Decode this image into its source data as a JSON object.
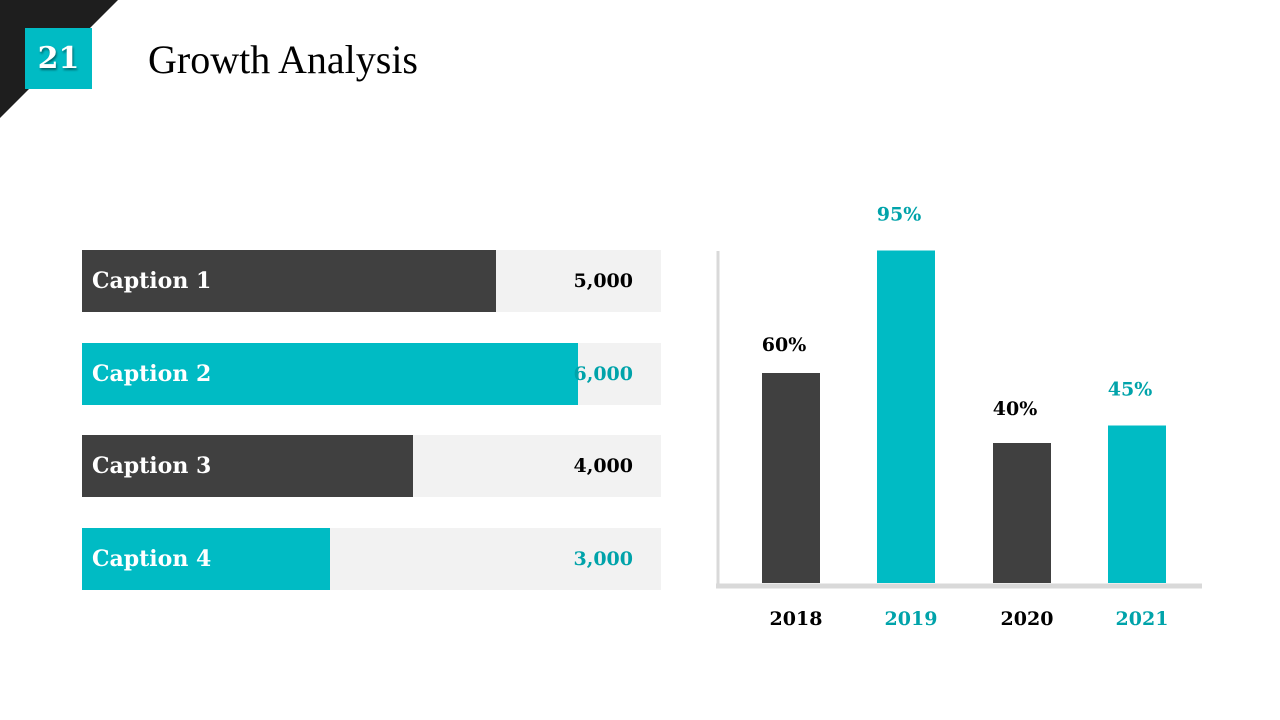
{
  "slide": {
    "number": "21",
    "title": "Growth Analysis"
  },
  "colors": {
    "dark": "#404040",
    "teal": "#00BBC4",
    "teal_text": "#00A3AA",
    "track": "#F2F2F2",
    "axis": "#D9D9D9"
  },
  "chart_data": [
    {
      "type": "bar",
      "orientation": "horizontal",
      "categories": [
        "Caption 1",
        "Caption 2",
        "Caption 3",
        "Caption 4"
      ],
      "values": [
        5000,
        6000,
        4000,
        3000
      ],
      "value_labels": [
        "5,000",
        "6,000",
        "4,000",
        "3,000"
      ],
      "xlim": [
        0,
        7000
      ],
      "bar_colors": [
        "dark",
        "teal",
        "dark",
        "teal"
      ]
    },
    {
      "type": "bar",
      "orientation": "vertical",
      "categories": [
        "2018",
        "2019",
        "2020",
        "2021"
      ],
      "values": [
        60,
        95,
        40,
        45
      ],
      "value_labels": [
        "60%",
        "95%",
        "40%",
        "45%"
      ],
      "ylim": [
        0,
        100
      ],
      "bar_colors": [
        "dark",
        "teal",
        "dark",
        "teal"
      ]
    }
  ]
}
